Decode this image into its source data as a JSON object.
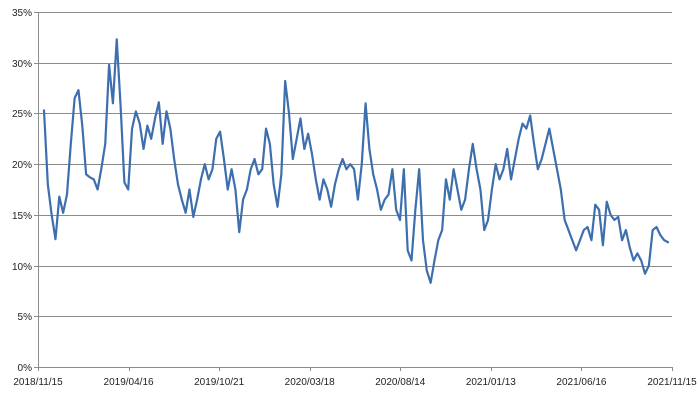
{
  "chart_data": {
    "type": "line",
    "title": "",
    "xlabel": "",
    "ylabel": "",
    "ylim": [
      0,
      35
    ],
    "yticks": [
      0,
      5,
      10,
      15,
      20,
      25,
      30,
      35
    ],
    "ytick_labels": [
      "0%",
      "5%",
      "10%",
      "15%",
      "20%",
      "25%",
      "30%",
      "35%"
    ],
    "xticks": [
      "2018/11/15",
      "2019/04/16",
      "2019/10/21",
      "2020/03/18",
      "2020/08/14",
      "2021/01/13",
      "2021/06/16",
      "2021/11/15"
    ],
    "grid": true,
    "legend": "none",
    "colors": {
      "series": "#3d6fae",
      "grid": "#8c8c8c",
      "text": "#222222"
    },
    "series": [
      {
        "x_start": "2018/11/15",
        "x_end": "2021/11/15",
        "values": [
          25.3,
          18.0,
          15.0,
          12.6,
          16.8,
          15.2,
          17.0,
          22.0,
          26.5,
          27.3,
          23.8,
          19.0,
          18.7,
          18.5,
          17.5,
          19.6,
          22.0,
          29.8,
          26.0,
          32.3,
          25.8,
          18.2,
          17.5,
          23.5,
          25.2,
          24.0,
          21.5,
          23.8,
          22.5,
          24.5,
          26.1,
          22.0,
          25.2,
          23.5,
          20.5,
          18.0,
          16.5,
          15.2,
          17.5,
          14.8,
          16.5,
          18.5,
          20.0,
          18.5,
          19.5,
          22.5,
          23.2,
          20.5,
          17.5,
          19.5,
          17.5,
          13.3,
          16.5,
          17.5,
          19.5,
          20.5,
          19.0,
          19.5,
          23.5,
          22.0,
          18.0,
          15.8,
          19.0,
          28.2,
          25.0,
          20.5,
          22.5,
          24.5,
          21.5,
          23.0,
          21.0,
          18.5,
          16.5,
          18.5,
          17.5,
          15.8,
          18.0,
          19.5,
          20.5,
          19.5,
          20.0,
          19.5,
          16.5,
          20.0,
          26.0,
          21.5,
          19.0,
          17.5,
          15.5,
          16.5,
          17.0,
          19.5,
          15.5,
          14.5,
          19.5,
          11.5,
          10.5,
          15.5,
          19.5,
          12.5,
          9.5,
          8.3,
          10.5,
          12.5,
          13.5,
          18.5,
          16.5,
          19.5,
          17.5,
          15.5,
          16.5,
          19.5,
          22.0,
          19.5,
          17.5,
          13.5,
          14.5,
          17.5,
          20.0,
          18.5,
          19.5,
          21.5,
          18.5,
          20.5,
          22.5,
          24.0,
          23.5,
          24.8,
          22.0,
          19.5,
          20.5,
          22.0,
          23.5,
          21.5,
          19.5,
          17.5,
          14.5,
          13.5,
          12.5,
          11.5,
          12.5,
          13.5,
          13.8,
          12.5,
          16.0,
          15.5,
          12.0,
          16.3,
          15.0,
          14.5,
          14.8,
          12.5,
          13.5,
          11.8,
          10.5,
          11.2,
          10.5,
          9.2,
          10.0,
          13.5,
          13.8,
          13.0,
          12.5,
          12.3
        ]
      }
    ]
  }
}
